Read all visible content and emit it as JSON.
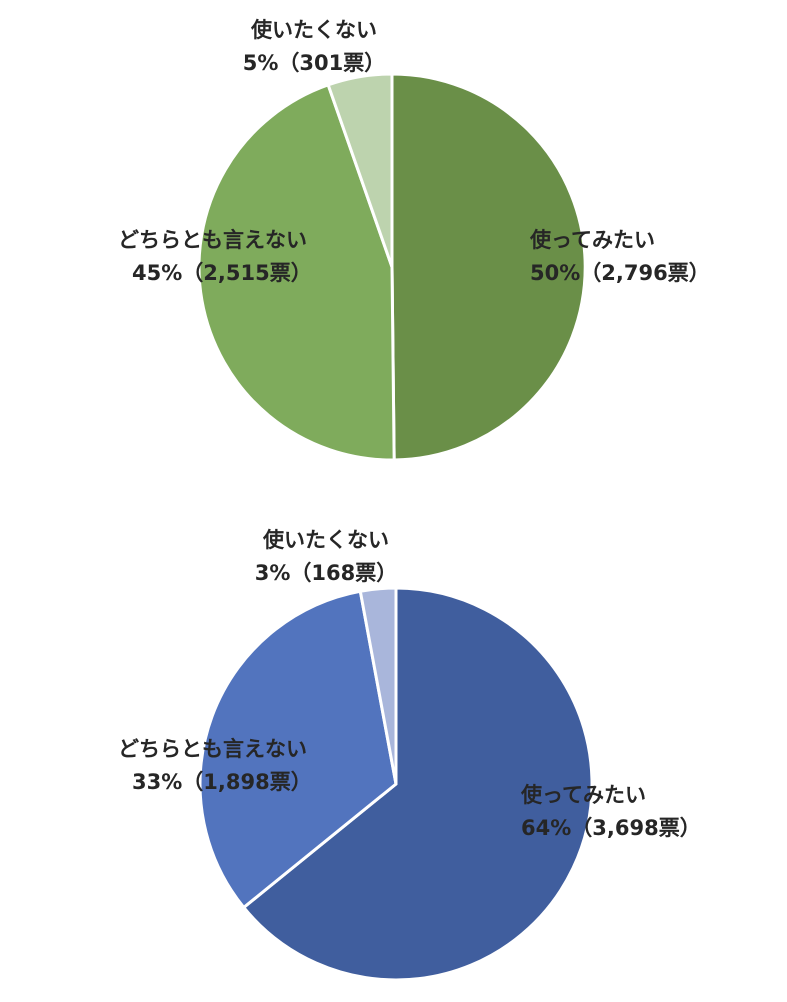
{
  "chart_data": [
    {
      "type": "pie",
      "slices": [
        {
          "label": "使ってみたい",
          "percent_label": "50%（2,796票）",
          "value": 2796,
          "color": "#6A8F48"
        },
        {
          "label": "どちらとも言えない",
          "percent_label": "45%（2,515票）",
          "value": 2515,
          "color": "#7FAB5C"
        },
        {
          "label": "使いたくない",
          "percent_label": "5%（301票）",
          "value": 301,
          "color": "#BDD3AE"
        }
      ]
    },
    {
      "type": "pie",
      "slices": [
        {
          "label": "使ってみたい",
          "percent_label": "64%（3,698票）",
          "value": 3698,
          "color": "#405E9E"
        },
        {
          "label": "どちらとも言えない",
          "percent_label": "33%（1,898票）",
          "value": 1898,
          "color": "#5274BE"
        },
        {
          "label": "使いたくない",
          "percent_label": "3%（168票）",
          "value": 168,
          "color": "#A9B6DB"
        }
      ]
    }
  ]
}
